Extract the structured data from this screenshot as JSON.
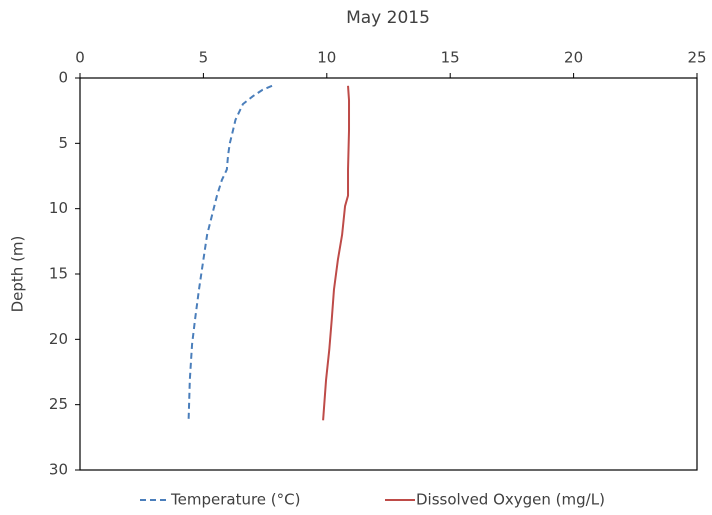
{
  "chart_data": {
    "type": "line",
    "title": "May 2015",
    "y_label": "Depth (m)",
    "xlim": [
      0,
      25
    ],
    "xticks": [
      0,
      5,
      10,
      15,
      20,
      25
    ],
    "ylim": [
      0,
      30
    ],
    "yticks": [
      0,
      5,
      10,
      15,
      20,
      25,
      30
    ],
    "y_inverted": true,
    "x_axis_position": "top",
    "legend": "bottom",
    "series": [
      {
        "name": "Temperature (°C)",
        "color": "#4a7ebb",
        "dashed": true,
        "x": [
          7.78,
          7.4,
          7.0,
          6.6,
          6.4,
          6.3,
          6.2,
          6.07,
          6.0,
          5.95,
          5.75,
          5.55,
          5.35,
          5.15,
          5.0,
          4.82,
          4.66,
          4.54,
          4.45,
          4.4
        ],
        "y": [
          0.6,
          0.9,
          1.4,
          2.0,
          2.8,
          3.2,
          4.0,
          5.0,
          5.9,
          7.0,
          7.8,
          9.0,
          10.5,
          12.0,
          13.9,
          16.2,
          18.5,
          20.4,
          23.1,
          26.2
        ]
      },
      {
        "name": "Dissolved Oxygen (mg/L)",
        "color": "#be4b48",
        "dashed": false,
        "x": [
          10.86,
          10.9,
          10.9,
          10.86,
          10.86,
          10.74,
          10.62,
          10.45,
          10.29,
          10.2,
          10.1,
          9.97,
          9.85
        ],
        "y": [
          0.6,
          1.7,
          4.0,
          7.0,
          9.0,
          9.8,
          12.0,
          13.9,
          16.2,
          18.5,
          20.8,
          23.1,
          26.2
        ]
      }
    ]
  }
}
